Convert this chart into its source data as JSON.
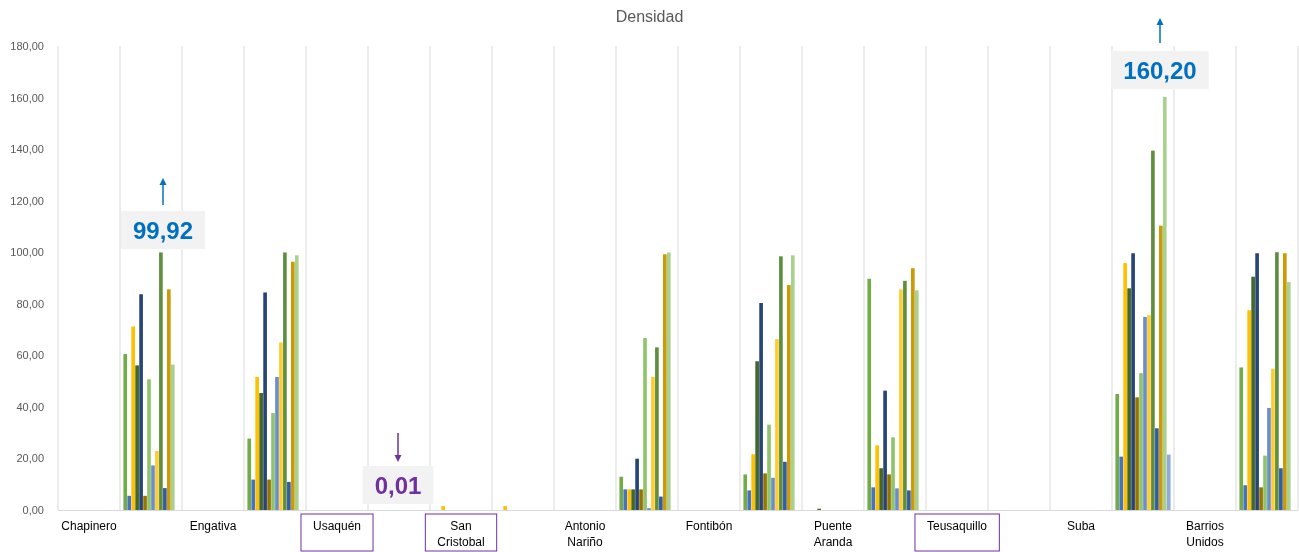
{
  "chart_data": {
    "type": "bar",
    "title": "Densidad",
    "categories": [
      "Chapinero",
      null,
      "Engativa",
      null,
      "Usaquén",
      null,
      "San Cristobal",
      null,
      "Antonio Nariño",
      null,
      "Fontibón",
      null,
      "Puente Aranda",
      null,
      "Teusaquillo",
      null,
      "Suba",
      null,
      "Barrios Unidos",
      null
    ],
    "series": [
      {
        "color": "#70ad47",
        "values": [
          null,
          60.5,
          null,
          27.7,
          null,
          null,
          null,
          null,
          null,
          12.9,
          null,
          13.8,
          null,
          89.7,
          null,
          null,
          null,
          45.0,
          null,
          55.3
        ]
      },
      {
        "color": "#4472c4",
        "values": [
          null,
          5.5,
          null,
          11.8,
          null,
          null,
          null,
          null,
          null,
          8.0,
          null,
          7.6,
          null,
          8.8,
          null,
          null,
          null,
          20.7,
          null,
          9.6
        ]
      },
      {
        "color": "#ffc000",
        "values": [
          null,
          71.2,
          null,
          51.6,
          null,
          null,
          1.5,
          1.5,
          null,
          8.0,
          null,
          21.6,
          null,
          25.1,
          null,
          null,
          null,
          95.8,
          null,
          77.5
        ]
      },
      {
        "color": "#43682b",
        "values": [
          null,
          56.1,
          null,
          45.4,
          null,
          null,
          null,
          null,
          null,
          8.0,
          null,
          57.7,
          0.5,
          16.2,
          null,
          null,
          null,
          86.0,
          null,
          90.5
        ]
      },
      {
        "color": "#264478",
        "values": [
          null,
          83.7,
          null,
          84.4,
          null,
          null,
          null,
          null,
          null,
          19.9,
          null,
          80.3,
          null,
          46.3,
          null,
          null,
          null,
          99.6,
          null,
          99.6
        ]
      },
      {
        "color": "#997300",
        "values": [
          null,
          5.5,
          null,
          11.8,
          null,
          null,
          null,
          null,
          null,
          8.0,
          null,
          14.2,
          null,
          13.8,
          null,
          null,
          null,
          43.7,
          null,
          8.8
        ]
      },
      {
        "color": "#8fc46a",
        "values": [
          null,
          50.7,
          null,
          37.6,
          null,
          0.01,
          null,
          null,
          null,
          66.7,
          null,
          33.1,
          null,
          28.2,
          null,
          null,
          null,
          53.1,
          null,
          21.1
        ]
      },
      {
        "color": "#698ed0",
        "values": [
          null,
          17.3,
          null,
          51.6,
          null,
          null,
          null,
          null,
          null,
          0.7,
          null,
          12.5,
          null,
          8.4,
          null,
          null,
          null,
          74.9,
          null,
          39.6
        ]
      },
      {
        "color": "#ffcd33",
        "values": [
          null,
          22.9,
          null,
          65.0,
          null,
          null,
          null,
          null,
          null,
          51.6,
          null,
          66.3,
          null,
          85.6,
          null,
          null,
          null,
          75.6,
          null,
          54.8
        ]
      },
      {
        "color": "#5e8e3e",
        "values": [
          null,
          99.92,
          null,
          99.9,
          null,
          null,
          null,
          null,
          null,
          63.1,
          null,
          98.4,
          null,
          88.9,
          null,
          null,
          null,
          139.4,
          null,
          100.0
        ]
      },
      {
        "color": "#2f5ca8",
        "values": [
          null,
          8.5,
          null,
          10.9,
          null,
          null,
          null,
          null,
          null,
          5.2,
          null,
          18.7,
          null,
          7.6,
          null,
          null,
          null,
          31.7,
          null,
          16.2
        ]
      },
      {
        "color": "#cc9a06",
        "values": [
          null,
          85.6,
          null,
          96.3,
          null,
          null,
          null,
          null,
          null,
          99.2,
          null,
          87.3,
          null,
          93.8,
          null,
          null,
          null,
          110.3,
          null,
          99.6
        ]
      },
      {
        "color": "#a9d18e",
        "values": [
          null,
          56.4,
          null,
          98.8,
          null,
          null,
          null,
          null,
          null,
          99.9,
          null,
          98.8,
          null,
          85.2,
          null,
          null,
          null,
          160.2,
          null,
          88.4
        ]
      },
      {
        "color": "#8faadc",
        "values": [
          null,
          null,
          null,
          null,
          null,
          null,
          null,
          null,
          null,
          null,
          null,
          null,
          null,
          null,
          null,
          null,
          null,
          21.5,
          null,
          null
        ]
      }
    ],
    "ylim": [
      0,
      180
    ],
    "yticks": [
      {
        "value": 0,
        "label": "0,00"
      },
      {
        "value": 20,
        "label": "20,00"
      },
      {
        "value": 40,
        "label": "40,00"
      },
      {
        "value": 60,
        "label": "60,00"
      },
      {
        "value": 80,
        "label": "80,00"
      },
      {
        "value": 100,
        "label": "100,00"
      },
      {
        "value": 120,
        "label": "120,00"
      },
      {
        "value": 140,
        "label": "140,00"
      },
      {
        "value": 160,
        "label": "160,00"
      },
      {
        "value": 180,
        "label": "180,00"
      }
    ],
    "grid": "x",
    "annotations": [
      "99,92",
      "0,01",
      "160,20"
    ]
  }
}
